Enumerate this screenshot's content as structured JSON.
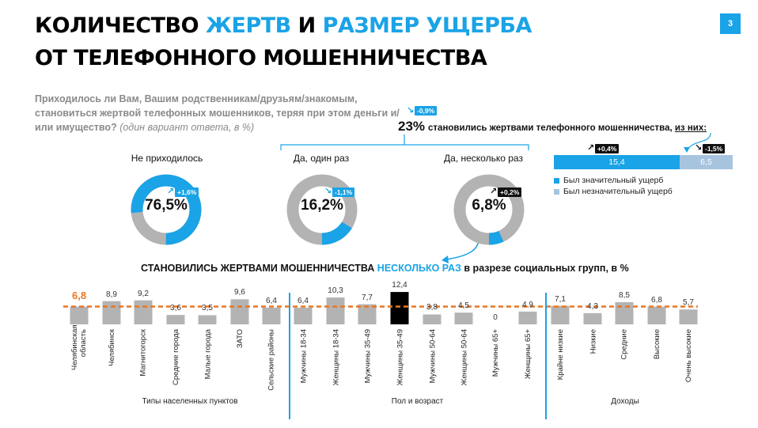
{
  "page_number": "3",
  "title": {
    "line1_a": "КОЛИЧЕСТВО ",
    "line1_b": "ЖЕРТВ",
    "line1_c": " И ",
    "line1_d": "РАЗМЕР УЩЕРБА",
    "line2": "ОТ ТЕЛЕФОННОГО МОШЕННИЧЕСТВА"
  },
  "question": {
    "text": "Приходилось ли Вам, Вашим родственникам/друзьям/знакомым, становиться жертвой телефонных мошенников, теряя при этом деньги и/или имущество?",
    "note": "(один вариант ответа, в %)"
  },
  "victims": {
    "pct": "23%",
    "change": "-0,9%",
    "text": "становились жертвами телефонного мошенничества, ",
    "text_underlined": "из них:"
  },
  "donuts": [
    {
      "label": "Не приходилось",
      "value": 76.5,
      "value_text": "76,5%",
      "change": "+1,6%",
      "color": "#1aa3e6"
    },
    {
      "label": "Да, один раз",
      "value": 16.2,
      "value_text": "16,2%",
      "change": "-1,1%",
      "color": "#1aa3e6"
    },
    {
      "label": "Да, несколько раз",
      "value": 6.8,
      "value_text": "6,8%",
      "change": "+0,2%",
      "color": "#1aa3e6"
    }
  ],
  "damage": {
    "segments": [
      {
        "name": "Был значительный ущерб",
        "value": 15.4,
        "value_text": "15,4",
        "change": "+0,4%",
        "color": "#1aa3e6"
      },
      {
        "name": "Был незначительный ущерб",
        "value": 6.5,
        "value_text": "6,5",
        "change": "-1,5%",
        "color": "#a7c4df"
      }
    ]
  },
  "section_title": {
    "a": "СТАНОВИЛИСЬ ЖЕРТВАМИ МОШЕННИЧЕСТВА ",
    "b": "НЕСКОЛЬКО РАЗ",
    "c": " в разрезе социальных групп, в %"
  },
  "chart_data": {
    "type": "bar",
    "reference_line": {
      "value": 6.8,
      "label": "6,8",
      "color": "#e87722"
    },
    "categories": [
      "Челябинская область",
      "Челябинск",
      "Магнитогорск",
      "Средние города",
      "Малые города",
      "ЗАТО",
      "Сельские районы",
      "Мужчины 18-34",
      "Женщины 18-34",
      "Мужчины 35-49",
      "Женщины 35-49",
      "Мужчины 50-64",
      "Женщины 50-64",
      "Мужчины 65+",
      "Женщины 65+",
      "Крайне низкие",
      "Низкие",
      "Средние",
      "Высокие",
      "Очень высокие"
    ],
    "values": [
      6.8,
      8.9,
      9.2,
      3.6,
      3.5,
      9.6,
      6.4,
      6.4,
      10.3,
      7.7,
      12.4,
      3.8,
      4.5,
      0,
      4.9,
      7.1,
      4.3,
      8.5,
      6.8,
      5.7
    ],
    "value_labels": [
      "6,8",
      "8,9",
      "9,2",
      "3,6",
      "3,5",
      "9,6",
      "6,4",
      "6,4",
      "10,3",
      "7,7",
      "12,4",
      "3,8",
      "4,5",
      "0",
      "4,9",
      "7,1",
      "4,3",
      "8,5",
      "6,8",
      "5,7"
    ],
    "groups": [
      {
        "label": "Типы населенных пунктов"
      },
      {
        "label": "Пол и возраст"
      },
      {
        "label": "Доходы"
      }
    ],
    "bar_color": "#b3b3b3",
    "highlight_color": "#000000"
  }
}
